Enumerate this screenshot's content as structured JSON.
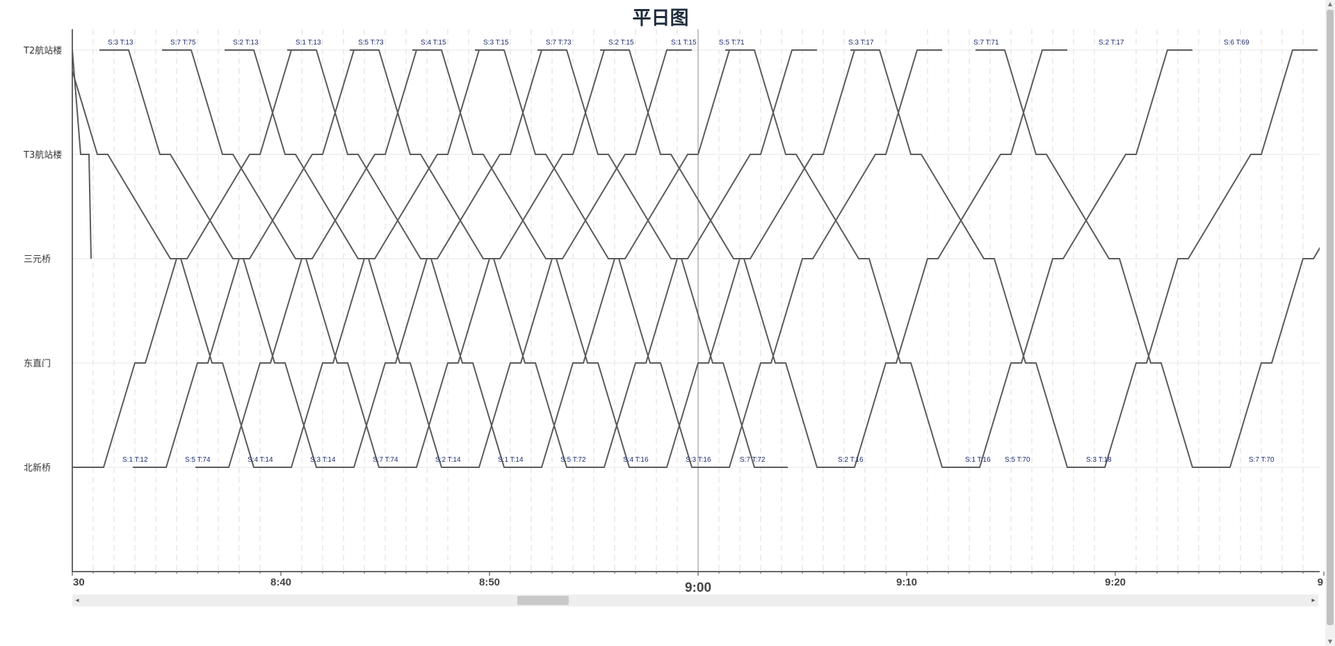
{
  "chart_data": {
    "type": "line",
    "title": "平日图",
    "stations": [
      "T2航站楼",
      "T3航站楼",
      "三元桥",
      "东直门",
      "北新桥"
    ],
    "x_ticks": [
      "30",
      "8:40",
      "8:50",
      "9:00",
      "9:10",
      "9:20",
      "9"
    ],
    "major_tick": "9:00",
    "xlim": [
      "8:30",
      "9:30"
    ],
    "grid": "dashed vertical every minute",
    "top_labels": [
      "S:3 T:13",
      "S:7 T:75",
      "S:2 T:13",
      "S:1 T:13",
      "S:5 T:73",
      "S:4 T:15",
      "S:3 T:15",
      "S:7 T:73",
      "S:2 T:15",
      "S:1 T:15",
      "S:5 T:71",
      "S:3 T:17",
      "S:7 T:71",
      "S:2 T:17",
      "S:6 T:69"
    ],
    "bottom_labels": [
      "S:1 T:12",
      "S:5 T:74",
      "S:4 T:14",
      "S:3 T:14",
      "S:7 T:74",
      "S:2 T:14",
      "S:1 T:14",
      "S:5 T:72",
      "S:4 T:16",
      "S:3 T:16",
      "S:7 T:72",
      "S:2 T:16",
      "S:1 T:16",
      "S:5 T:70",
      "S:3 T:18",
      "S:7 T:70"
    ],
    "down_departures": [
      8.7,
      11.7,
      14.7,
      17.7,
      20.7,
      23.7,
      26.7,
      29.7,
      32.7,
      35.7
    ],
    "down_departures_b": [
      41.7,
      47.7,
      53.7
    ],
    "up_departures": [
      31.5,
      34.5,
      37.5,
      40.5,
      43.5,
      46.5,
      49.5,
      52.5,
      55.5,
      58.5,
      61.5
    ],
    "up_departures_b": [
      67.5,
      73.5,
      79.5,
      85.5
    ]
  },
  "scroll": {
    "left_arrow": "◂",
    "right_arrow": "▸"
  }
}
